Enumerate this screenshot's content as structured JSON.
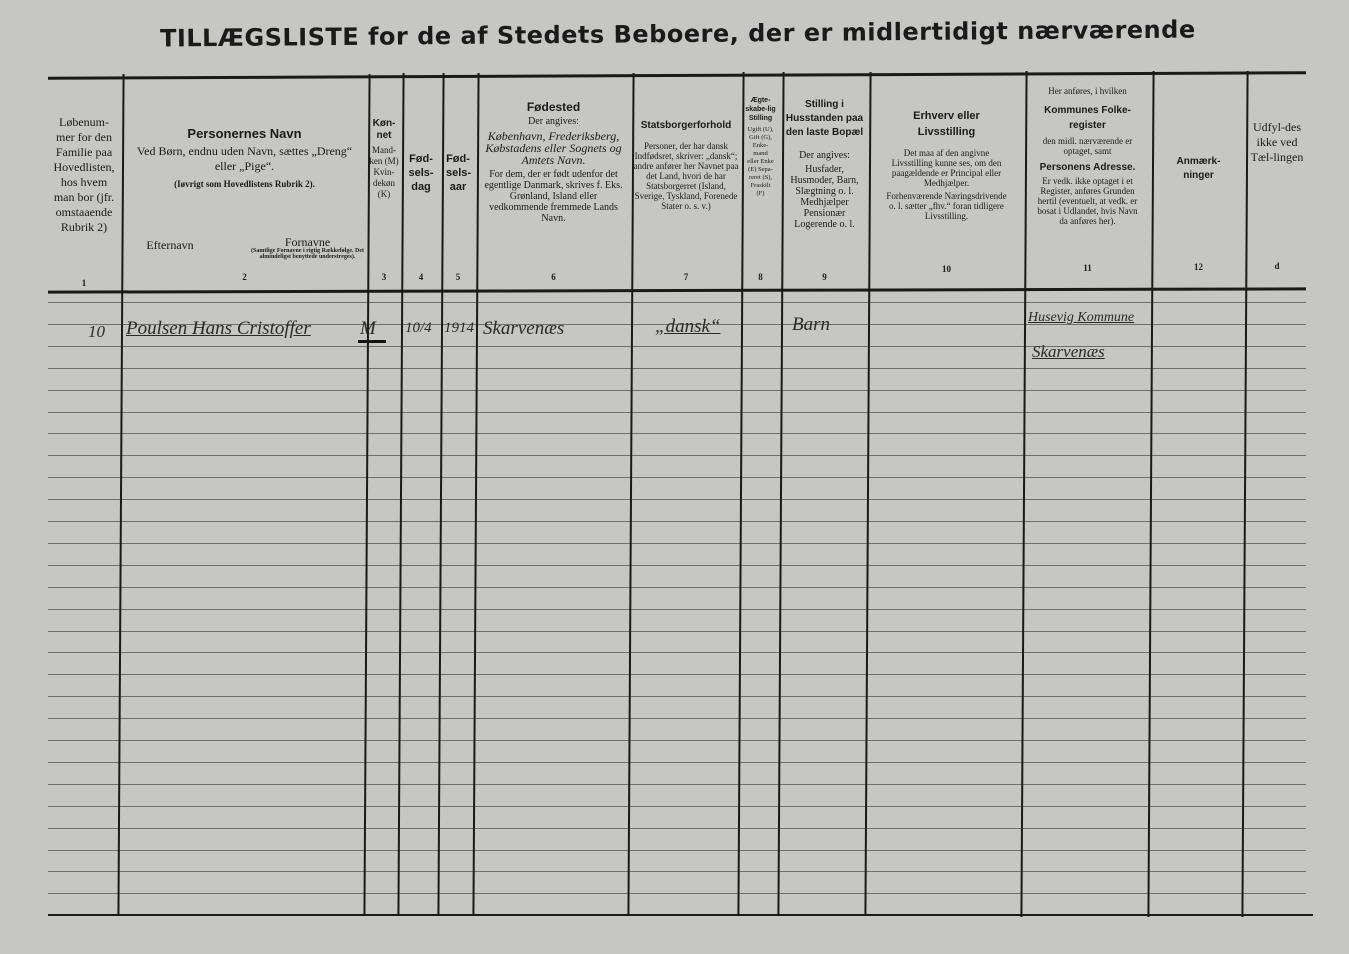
{
  "title": "TILLÆGSLISTE for de af Stedets Beboere, der er midlertidigt nærværende",
  "columns": [
    {
      "number": "1",
      "title": "",
      "lines": [
        "Løbenum-mer for den Familie paa Hovedlisten, hos hvem man bor (jfr. omstaaende Rubrik 2)"
      ]
    },
    {
      "number": "2",
      "title": "Personernes Navn",
      "lines": [
        "Ved Børn, endnu uden Navn, sættes „Dreng“ eller „Pige“.",
        "(Iøvrigt som Hovedlistens Rubrik 2)."
      ],
      "sub_left": "Efternavn",
      "sub_right": "Fornavne",
      "sub_right_note": "(Samtlige Fornavne i rigtig Rækkefølge. Det almindeligst benyttede understreges)."
    },
    {
      "number": "3",
      "title": "Køn-net",
      "lines": [
        "Mand-ken (M) Kvin-dekøn (K)"
      ]
    },
    {
      "number": "4",
      "title": "Fød-sels-dag",
      "lines": []
    },
    {
      "number": "5",
      "title": "Fød-sels-aar",
      "lines": []
    },
    {
      "number": "6",
      "title": "Fødested",
      "lines": [
        "Der angives:",
        "København, Frederiksberg, Købstadens eller Sognets og Amtets Navn.",
        "For dem, der er født udenfor det egentlige Danmark, skrives f. Eks. Grønland, Island eller vedkommende fremmede Lands Navn."
      ]
    },
    {
      "number": "7",
      "title": "Statsborgerforhold",
      "lines": [
        "Personer, der har dansk Indfødsret, skriver: „dansk“; andre anfører her Navnet paa det Land, hvori de har Statsborgerret (Island, Sverige, Tyskland, Forenede Stater o. s. v.)"
      ]
    },
    {
      "number": "8",
      "title": "Ægte-skabe-lig Stilling",
      "lines": [
        "Ugift (U), Gift (G), Enke-mand eller Enke (E) Sepa-reret (S), Fraskilt (F)"
      ]
    },
    {
      "number": "9",
      "title": "Stilling i Husstanden paa den laste Bopæl",
      "lines": [
        "Der angives:",
        "Husfader, Husmoder, Barn, Slægtning o. l. Medhjælper Pensionær Logerende o. l."
      ]
    },
    {
      "number": "10",
      "title": "Erhverv eller Livsstilling",
      "lines": [
        "Det maa af den angivne Livsstilling kunne ses, om den paagældende er Principal eller Medhjælper.",
        "Forhenværende Næringsdrivende o. l. sætter „fhv.“ foran tidligere Livsstilling."
      ]
    },
    {
      "number": "11",
      "title": "Kommunes Folke-register",
      "pre": "Her anføres, i hvilken",
      "lines": [
        "den midl. nærværende er optaget, samt"
      ],
      "title2": "Personens Adresse.",
      "lines2": [
        "Er vedk. ikke optaget i et Register, anføres Grunden hertil (eventuelt, at vedk. er bosat i Udlandet, hvis Navn da anføres her)."
      ]
    },
    {
      "number": "12",
      "title": "Anmærk-ninger",
      "lines": []
    },
    {
      "number": "d",
      "title": "",
      "lines": [
        "Udfyl-des ikke ved Tæl-lingen"
      ]
    }
  ],
  "entries": [
    {
      "lobenummer": "10",
      "name": "Poulsen Hans Cristoffer",
      "kon": "M",
      "fodselsdag": "10/4",
      "fodselsaar": "1914",
      "fodested": "Skarvenæs",
      "statsborger": "„dansk“",
      "stilling": "Barn",
      "folkeregister": "Husevig Kommune",
      "adresse": "Skarvenæs"
    }
  ]
}
